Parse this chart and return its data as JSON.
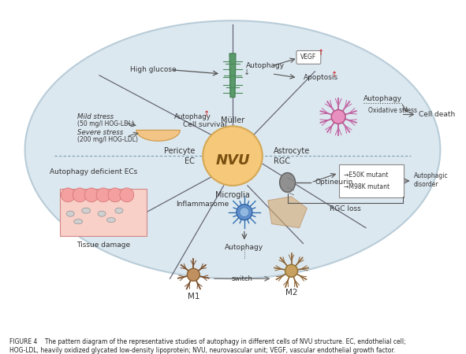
{
  "figure_caption_line1": "FIGURE 4    The pattern diagram of the representative studies of autophagy in different cells of NVU structure. EC, endothelial cell;",
  "figure_caption_line2": "HOG-LDL, heavily oxidized glycated low-density lipoprotein; NVU, neurovascular unit; VEGF, vascular endothelial growth factor.",
  "ellipse_color": "#dce8f0",
  "ellipse_edge": "#b8ccd8",
  "center_circle_color": "#f5c87a",
  "center_circle_edge": "#d4a855",
  "center_text": "NVU",
  "text_color": "#333333",
  "spoke_color": "#666677",
  "divider_color": "#7a9ab0",
  "red_color": "#cc2222",
  "arrow_color": "#555555",
  "green_cell_color": "#5a9a6a",
  "astrocyte_color": "#d070a0",
  "astrocyte_center": "#e890c0",
  "pericyte_color": "#f5c07a",
  "rgc_color": "#909090",
  "inflammasome_color": "#4080c0",
  "m1_color": "#8B5E3C",
  "m2_color": "#9B7040",
  "tissue_pink": "#f5b8b0",
  "blue_spiky": "#5090d0"
}
